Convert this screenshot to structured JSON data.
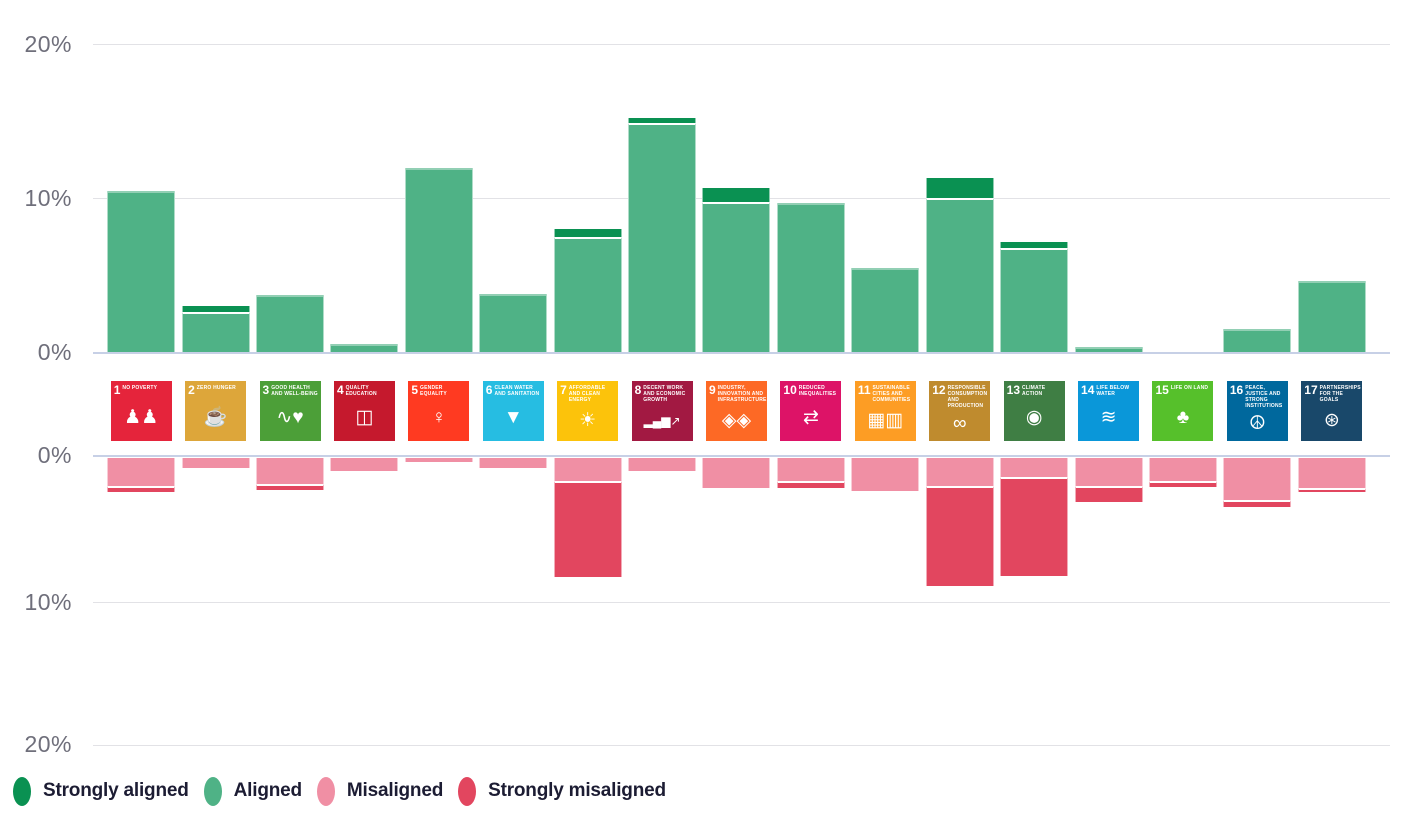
{
  "chart_data": {
    "type": "bar",
    "variant": "diverging-stacked",
    "title": "",
    "xlabel": "",
    "ylabel": "",
    "unit": "%",
    "grid": true,
    "legend_position": "bottom-left",
    "axis_ticks_top": [
      "20%",
      "10%",
      "0%"
    ],
    "axis_ticks_bottom": [
      "0%",
      "10%",
      "20%"
    ],
    "ylim_top": [
      0,
      20
    ],
    "ylim_bottom": [
      0,
      -20
    ],
    "colors": {
      "strongly_aligned": "#0a9152",
      "aligned": "#4fb286",
      "misaligned": "#f08fa4",
      "strongly_misaligned": "#e2465f",
      "zero_axis_line": "#c7d0e6",
      "gridline": "#e2e2e6",
      "tick_label": "#6f6f7b",
      "legend_text": "#1c1c33"
    },
    "categories": [
      {
        "number": "1",
        "title": "NO POVERTY",
        "color": "#e5243b",
        "glyph": "♟♟",
        "icon_name": "sdg-1-no-poverty-icon"
      },
      {
        "number": "2",
        "title": "ZERO HUNGER",
        "color": "#dda63a",
        "glyph": "☕",
        "icon_name": "sdg-2-zero-hunger-icon"
      },
      {
        "number": "3",
        "title": "GOOD HEALTH AND WELL-BEING",
        "color": "#4c9f38",
        "glyph": "∿♥",
        "icon_name": "sdg-3-good-health-icon"
      },
      {
        "number": "4",
        "title": "QUALITY EDUCATION",
        "color": "#c5192d",
        "glyph": "◫",
        "icon_name": "sdg-4-quality-education-icon"
      },
      {
        "number": "5",
        "title": "GENDER EQUALITY",
        "color": "#ff3a21",
        "glyph": "♀",
        "icon_name": "sdg-5-gender-equality-icon"
      },
      {
        "number": "6",
        "title": "CLEAN WATER AND SANITATION",
        "color": "#26bde2",
        "glyph": "▼",
        "icon_name": "sdg-6-clean-water-icon"
      },
      {
        "number": "7",
        "title": "AFFORDABLE AND CLEAN ENERGY",
        "color": "#fcc30b",
        "glyph": "☀",
        "icon_name": "sdg-7-clean-energy-icon"
      },
      {
        "number": "8",
        "title": "DECENT WORK AND ECONOMIC GROWTH",
        "color": "#a21942",
        "glyph": "▂▄▆↗",
        "icon_name": "sdg-8-decent-work-icon"
      },
      {
        "number": "9",
        "title": "INDUSTRY, INNOVATION AND INFRASTRUCTURE",
        "color": "#fd6925",
        "glyph": "◈◈",
        "icon_name": "sdg-9-industry-innovation-icon"
      },
      {
        "number": "10",
        "title": "REDUCED INEQUALITIES",
        "color": "#dd1367",
        "glyph": "⇄",
        "icon_name": "sdg-10-reduced-inequalities-icon"
      },
      {
        "number": "11",
        "title": "SUSTAINABLE CITIES AND COMMUNITIES",
        "color": "#fd9d24",
        "glyph": "▦▥",
        "icon_name": "sdg-11-sustainable-cities-icon"
      },
      {
        "number": "12",
        "title": "RESPONSIBLE CONSUMPTION AND PRODUCTION",
        "color": "#bf8b2e",
        "glyph": "∞",
        "icon_name": "sdg-12-responsible-consumption-icon"
      },
      {
        "number": "13",
        "title": "CLIMATE ACTION",
        "color": "#3f7e44",
        "glyph": "◉",
        "icon_name": "sdg-13-climate-action-icon"
      },
      {
        "number": "14",
        "title": "LIFE BELOW WATER",
        "color": "#0a97d9",
        "glyph": "≋",
        "icon_name": "sdg-14-life-below-water-icon"
      },
      {
        "number": "15",
        "title": "LIFE ON LAND",
        "color": "#56c02b",
        "glyph": "♣",
        "icon_name": "sdg-15-life-on-land-icon"
      },
      {
        "number": "16",
        "title": "PEACE, JUSTICE AND STRONG INSTITUTIONS",
        "color": "#00689d",
        "glyph": "☮",
        "icon_name": "sdg-16-peace-justice-icon"
      },
      {
        "number": "17",
        "title": "PARTNERSHIPS FOR THE GOALS",
        "color": "#19486a",
        "glyph": "⊛",
        "icon_name": "sdg-17-partnerships-icon"
      }
    ],
    "series": [
      {
        "name": "Strongly aligned",
        "direction": "up",
        "color_key": "strongly_aligned",
        "values": [
          0,
          0.4,
          0,
          0,
          0,
          0,
          0.5,
          0.3,
          0.9,
          0,
          0,
          1.3,
          0.4,
          0,
          0,
          0,
          0
        ]
      },
      {
        "name": "Aligned",
        "direction": "up",
        "color_key": "aligned",
        "values": [
          10.5,
          2.6,
          3.7,
          0.5,
          12.0,
          3.8,
          7.5,
          14.9,
          9.8,
          9.7,
          5.5,
          10.0,
          6.8,
          0.3,
          0,
          1.5,
          4.6
        ]
      },
      {
        "name": "Misaligned",
        "direction": "down",
        "color_key": "misaligned",
        "values": [
          1.9,
          0.7,
          1.8,
          0.9,
          0.3,
          0.7,
          1.6,
          0.9,
          2.1,
          1.6,
          2.3,
          1.9,
          1.3,
          1.9,
          1.6,
          2.9,
          2.1
        ]
      },
      {
        "name": "Strongly misaligned",
        "direction": "down",
        "color_key": "strongly_misaligned",
        "values": [
          0.4,
          0,
          0.4,
          0,
          0,
          0,
          6.6,
          0,
          0,
          0.5,
          0,
          6.9,
          6.8,
          1.1,
          0.4,
          0.5,
          0.3
        ]
      }
    ],
    "legend": [
      {
        "label": "Strongly aligned",
        "color_key": "strongly_aligned"
      },
      {
        "label": "Aligned",
        "color_key": "aligned"
      },
      {
        "label": "Misaligned",
        "color_key": "misaligned"
      },
      {
        "label": "Strongly misaligned",
        "color_key": "strongly_misaligned"
      }
    ]
  }
}
